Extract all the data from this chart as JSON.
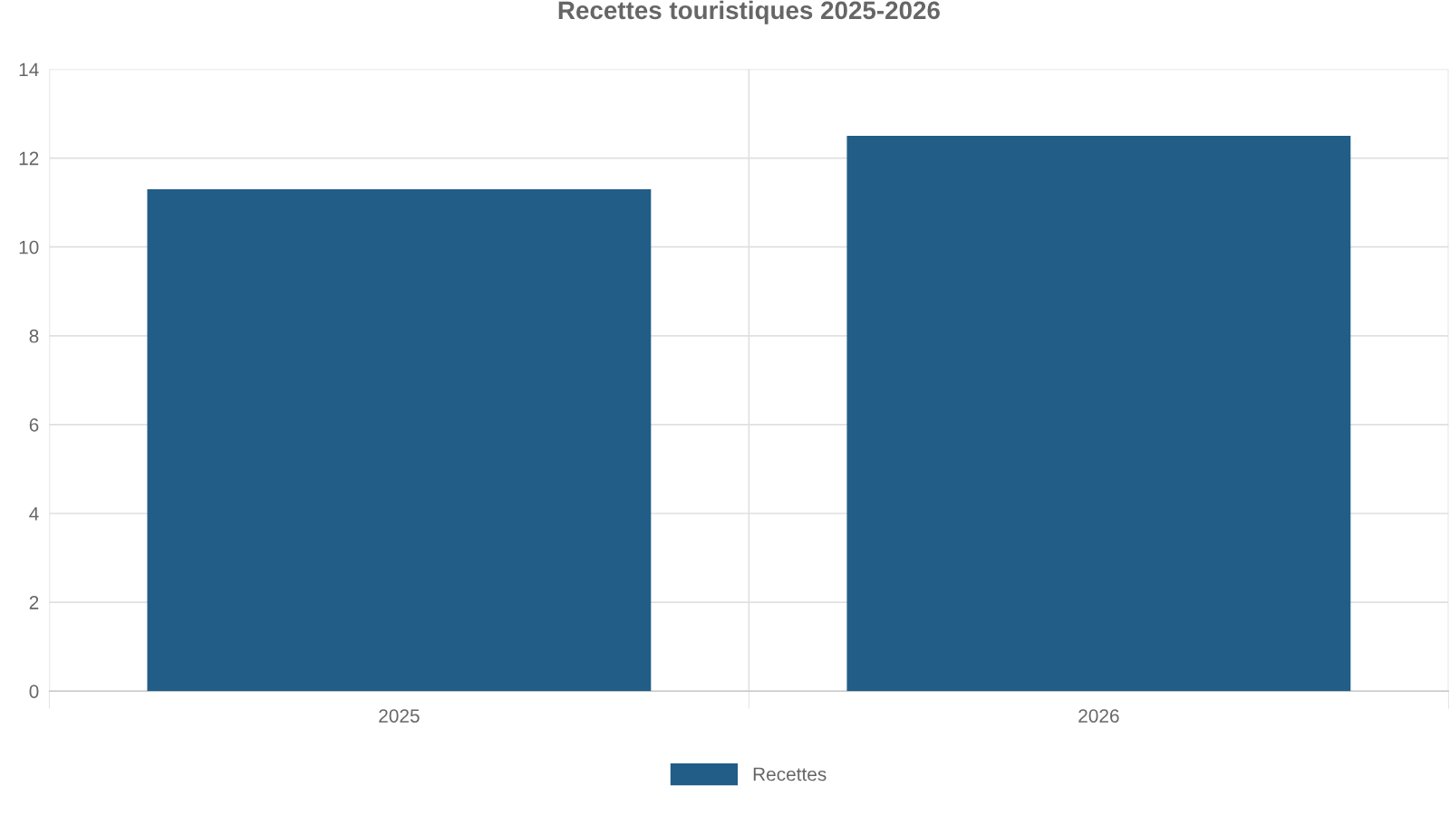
{
  "chart_data": {
    "type": "bar",
    "title": "Recettes touristiques 2025-2026",
    "categories": [
      "2025",
      "2026"
    ],
    "series": [
      {
        "name": "Recettes",
        "color": "#215d87",
        "values": [
          11.3,
          12.5
        ]
      }
    ],
    "ylim": [
      0,
      14
    ],
    "yticks": [
      0,
      2,
      4,
      6,
      8,
      10,
      12,
      14
    ],
    "grid": true,
    "legend": "bottom"
  }
}
